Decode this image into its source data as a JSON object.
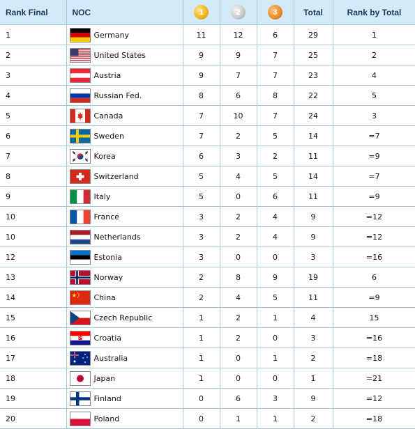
{
  "headers": {
    "rank_final": "Rank Final",
    "noc": "NOC",
    "gold": "1",
    "silver": "2",
    "bronze": "3",
    "total": "Total",
    "rank_by_total": "Rank by Total"
  },
  "colors": {
    "header_bg": "#d3ebf8",
    "grid": "#a9c7dc",
    "gold": "#f1b21b",
    "silver": "#c8c8c8",
    "bronze": "#e88a2a"
  },
  "rows": [
    {
      "rank": "1",
      "flag": "germany-flag-icon",
      "noc": "Germany",
      "gold": "11",
      "silver": "12",
      "bronze": "6",
      "total": "29",
      "rank_by_total": "1"
    },
    {
      "rank": "2",
      "flag": "united-states-flag-icon",
      "noc": "United States",
      "gold": "9",
      "silver": "9",
      "bronze": "7",
      "total": "25",
      "rank_by_total": "2"
    },
    {
      "rank": "3",
      "flag": "austria-flag-icon",
      "noc": "Austria",
      "gold": "9",
      "silver": "7",
      "bronze": "7",
      "total": "23",
      "rank_by_total": "4"
    },
    {
      "rank": "4",
      "flag": "russia-flag-icon",
      "noc": "Russian Fed.",
      "gold": "8",
      "silver": "6",
      "bronze": "8",
      "total": "22",
      "rank_by_total": "5"
    },
    {
      "rank": "5",
      "flag": "canada-flag-icon",
      "noc": "Canada",
      "gold": "7",
      "silver": "10",
      "bronze": "7",
      "total": "24",
      "rank_by_total": "3"
    },
    {
      "rank": "6",
      "flag": "sweden-flag-icon",
      "noc": "Sweden",
      "gold": "7",
      "silver": "2",
      "bronze": "5",
      "total": "14",
      "rank_by_total": "=7"
    },
    {
      "rank": "7",
      "flag": "korea-flag-icon",
      "noc": "Korea",
      "gold": "6",
      "silver": "3",
      "bronze": "2",
      "total": "11",
      "rank_by_total": "=9"
    },
    {
      "rank": "8",
      "flag": "switzerland-flag-icon",
      "noc": "Switzerland",
      "gold": "5",
      "silver": "4",
      "bronze": "5",
      "total": "14",
      "rank_by_total": "=7"
    },
    {
      "rank": "9",
      "flag": "italy-flag-icon",
      "noc": "Italy",
      "gold": "5",
      "silver": "0",
      "bronze": "6",
      "total": "11",
      "rank_by_total": "=9"
    },
    {
      "rank": "10",
      "flag": "france-flag-icon",
      "noc": "France",
      "gold": "3",
      "silver": "2",
      "bronze": "4",
      "total": "9",
      "rank_by_total": "=12"
    },
    {
      "rank": "10",
      "flag": "netherlands-flag-icon",
      "noc": "Netherlands",
      "gold": "3",
      "silver": "2",
      "bronze": "4",
      "total": "9",
      "rank_by_total": "=12"
    },
    {
      "rank": "12",
      "flag": "estonia-flag-icon",
      "noc": "Estonia",
      "gold": "3",
      "silver": "0",
      "bronze": "0",
      "total": "3",
      "rank_by_total": "=16"
    },
    {
      "rank": "13",
      "flag": "norway-flag-icon",
      "noc": "Norway",
      "gold": "2",
      "silver": "8",
      "bronze": "9",
      "total": "19",
      "rank_by_total": "6"
    },
    {
      "rank": "14",
      "flag": "china-flag-icon",
      "noc": "China",
      "gold": "2",
      "silver": "4",
      "bronze": "5",
      "total": "11",
      "rank_by_total": "=9"
    },
    {
      "rank": "15",
      "flag": "czech-republic-flag-icon",
      "noc": "Czech Republic",
      "gold": "1",
      "silver": "2",
      "bronze": "1",
      "total": "4",
      "rank_by_total": "15"
    },
    {
      "rank": "16",
      "flag": "croatia-flag-icon",
      "noc": "Croatia",
      "gold": "1",
      "silver": "2",
      "bronze": "0",
      "total": "3",
      "rank_by_total": "=16"
    },
    {
      "rank": "17",
      "flag": "australia-flag-icon",
      "noc": "Australia",
      "gold": "1",
      "silver": "0",
      "bronze": "1",
      "total": "2",
      "rank_by_total": "=18"
    },
    {
      "rank": "18",
      "flag": "japan-flag-icon",
      "noc": "Japan",
      "gold": "1",
      "silver": "0",
      "bronze": "0",
      "total": "1",
      "rank_by_total": "=21"
    },
    {
      "rank": "19",
      "flag": "finland-flag-icon",
      "noc": "Finland",
      "gold": "0",
      "silver": "6",
      "bronze": "3",
      "total": "9",
      "rank_by_total": "=12"
    },
    {
      "rank": "20",
      "flag": "poland-flag-icon",
      "noc": "Poland",
      "gold": "0",
      "silver": "1",
      "bronze": "1",
      "total": "2",
      "rank_by_total": "=18"
    }
  ]
}
